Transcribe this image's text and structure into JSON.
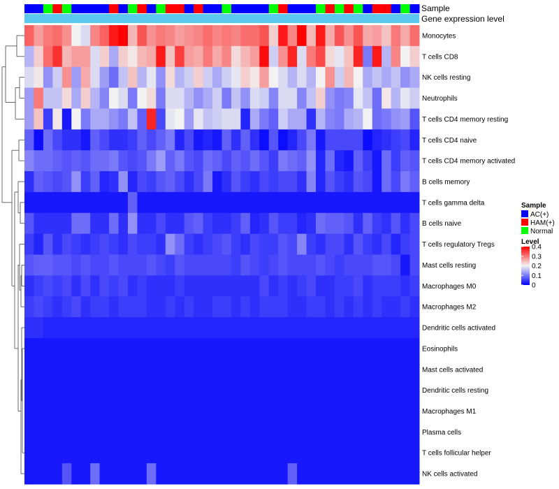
{
  "chart_data": {
    "type": "heatmap",
    "title": "",
    "annotation_rows": [
      {
        "label": "Sample"
      },
      {
        "label": "Gene expression level"
      }
    ],
    "row_labels": [
      "Monocytes",
      "T cells CD8",
      "NK cells resting",
      "Neutrophils",
      "T cells CD4 memory resting",
      "T cells CD4 naive",
      "T cells CD4 memory activated",
      "B cells memory",
      "T cells gamma delta",
      "B cells naive",
      "T cells regulatory  Tregs",
      "Mast cells resting",
      "Macrophages M0",
      "Macrophages M2",
      "Dendritic cells activated",
      "Eosinophils",
      "Mast cells activated",
      "Dendritic cells resting",
      "Macrophages M1",
      "Plasma cells",
      "T cells follicular helper",
      "NK cells activated"
    ],
    "sample_groups": [
      "AC",
      "AC",
      "N",
      "H",
      "N",
      "AC",
      "AC",
      "AC",
      "AC",
      "H",
      "AC",
      "N",
      "H",
      "AC",
      "N",
      "H",
      "H",
      "AC",
      "H",
      "AC",
      "AC",
      "N",
      "AC",
      "AC",
      "AC",
      "AC",
      "N",
      "H",
      "AC",
      "AC",
      "AC",
      "N",
      "H",
      "N",
      "H",
      "N",
      "AC",
      "H",
      "H",
      "AC",
      "N",
      "AC"
    ],
    "legend": {
      "sample": {
        "title": "Sample",
        "entries": [
          {
            "key": "AC",
            "label": "AC(+)",
            "color": "#0000ff"
          },
          {
            "key": "H",
            "label": "HAM(+)",
            "color": "#ff0000"
          },
          {
            "key": "N",
            "label": "Normal",
            "color": "#00ff00"
          }
        ]
      },
      "level": {
        "title": "Level",
        "min": 0,
        "max": 0.4,
        "ticks": [
          {
            "value": 0.4,
            "label": "0.4"
          },
          {
            "value": 0.3,
            "label": "0.3"
          },
          {
            "value": 0.2,
            "label": "0.2"
          },
          {
            "value": 0.1,
            "label": "0.1"
          },
          {
            "value": 0,
            "label": "0"
          }
        ],
        "colors": {
          "low": "#0000ff",
          "mid": "#f2f2f2",
          "high": "#ff0000"
        }
      }
    },
    "expression_bar_color": "#5bc8f0",
    "values": [
      [
        0.32,
        0.27,
        0.3,
        0.31,
        0.28,
        0.2,
        0.18,
        0.29,
        0.32,
        0.38,
        0.4,
        0.25,
        0.33,
        0.28,
        0.3,
        0.29,
        0.27,
        0.28,
        0.29,
        0.31,
        0.29,
        0.3,
        0.29,
        0.31,
        0.31,
        0.33,
        0.23,
        0.38,
        0.29,
        0.4,
        0.25,
        0.38,
        0.26,
        0.33,
        0.28,
        0.33,
        0.26,
        0.27,
        0.24,
        0.3,
        0.26,
        0.31
      ],
      [
        0.15,
        0.23,
        0.31,
        0.36,
        0.25,
        0.27,
        0.27,
        0.18,
        0.23,
        0.14,
        0.23,
        0.21,
        0.25,
        0.26,
        0.38,
        0.24,
        0.35,
        0.27,
        0.26,
        0.3,
        0.26,
        0.29,
        0.22,
        0.25,
        0.27,
        0.39,
        0.17,
        0.28,
        0.37,
        0.18,
        0.3,
        0.34,
        0.22,
        0.19,
        0.24,
        0.37,
        0.1,
        0.38,
        0.15,
        0.29,
        0.2,
        0.23
      ],
      [
        0.18,
        0.21,
        0.12,
        0.17,
        0.28,
        0.13,
        0.26,
        0.18,
        0.13,
        0.09,
        0.16,
        0.24,
        0.15,
        0.19,
        0.12,
        0.22,
        0.15,
        0.17,
        0.23,
        0.17,
        0.14,
        0.17,
        0.19,
        0.23,
        0.21,
        0.27,
        0.2,
        0.18,
        0.15,
        0.18,
        0.15,
        0.2,
        0.28,
        0.17,
        0.25,
        0.2,
        0.14,
        0.16,
        0.14,
        0.16,
        0.12,
        0.14
      ],
      [
        0.13,
        0.3,
        0.16,
        0.16,
        0.22,
        0.14,
        0.23,
        0.15,
        0.11,
        0.2,
        0.18,
        0.1,
        0.2,
        0.22,
        0.1,
        0.18,
        0.18,
        0.15,
        0.12,
        0.14,
        0.17,
        0.1,
        0.16,
        0.12,
        0.18,
        0.17,
        0.11,
        0.18,
        0.18,
        0.11,
        0.16,
        0.23,
        0.12,
        0.1,
        0.11,
        0.19,
        0.16,
        0.09,
        0.21,
        0.15,
        0.19,
        0.17
      ],
      [
        0.13,
        0.24,
        0.05,
        0.21,
        0.02,
        0.2,
        0.1,
        0.14,
        0.14,
        0.12,
        0.1,
        0.16,
        0.08,
        0.37,
        0.06,
        0.19,
        0.2,
        0.13,
        0.19,
        0.16,
        0.17,
        0.18,
        0.18,
        0.03,
        0.14,
        0.1,
        0.08,
        0.17,
        0.14,
        0.14,
        0.04,
        0.15,
        0.11,
        0.1,
        0.14,
        0.15,
        0.2,
        0.09,
        0.1,
        0.12,
        0.13,
        0.07
      ],
      [
        0.08,
        0.01,
        0.09,
        0.06,
        0.04,
        0.04,
        0.02,
        0.08,
        0.06,
        0.04,
        0.04,
        0.05,
        0.08,
        0.06,
        0.08,
        0.1,
        0.03,
        0.06,
        0.02,
        0.03,
        0.02,
        0.08,
        0.04,
        0.08,
        0.04,
        0.01,
        0.07,
        0.01,
        0.03,
        0.06,
        0.1,
        0.02,
        0.06,
        0.06,
        0.06,
        0.06,
        0.01,
        0.03,
        0.04,
        0.05,
        0.06,
        0.03
      ],
      [
        0.11,
        0.09,
        0.09,
        0.08,
        0.07,
        0.08,
        0.07,
        0.09,
        0.09,
        0.1,
        0.07,
        0.06,
        0.07,
        0.1,
        0.13,
        0.08,
        0.1,
        0.07,
        0.06,
        0.09,
        0.08,
        0.06,
        0.08,
        0.07,
        0.09,
        0.07,
        0.05,
        0.1,
        0.09,
        0.08,
        0.12,
        0.03,
        0.09,
        0.03,
        0.02,
        0.08,
        0.05,
        0.02,
        0.09,
        0.05,
        0.08,
        0.07
      ],
      [
        0.04,
        0.08,
        0.07,
        0.06,
        0.07,
        0.12,
        0.05,
        0.08,
        0.03,
        0.04,
        0.12,
        0.03,
        0.06,
        0.05,
        0.07,
        0.08,
        0.06,
        0.04,
        0.06,
        0.1,
        0.02,
        0.04,
        0.07,
        0.05,
        0.04,
        0.06,
        0.05,
        0.06,
        0.06,
        0.04,
        0.11,
        0.03,
        0.07,
        0.05,
        0.04,
        0.07,
        0.06,
        0.02,
        0.09,
        0.06,
        0.1,
        0.08
      ],
      [
        0.02,
        0.02,
        0.02,
        0.02,
        0.02,
        0.02,
        0.02,
        0.02,
        0.02,
        0.02,
        0.02,
        0.08,
        0.02,
        0.02,
        0.02,
        0.02,
        0.02,
        0.02,
        0.02,
        0.02,
        0.02,
        0.02,
        0.02,
        0.02,
        0.02,
        0.02,
        0.02,
        0.02,
        0.02,
        0.02,
        0.02,
        0.02,
        0.02,
        0.02,
        0.02,
        0.02,
        0.02,
        0.02,
        0.02,
        0.02,
        0.02,
        0.02
      ],
      [
        0.07,
        0.04,
        0.04,
        0.04,
        0.04,
        0.09,
        0.09,
        0.04,
        0.04,
        0.09,
        0.04,
        0.12,
        0.04,
        0.04,
        0.06,
        0.04,
        0.04,
        0.07,
        0.08,
        0.05,
        0.04,
        0.04,
        0.05,
        0.08,
        0.03,
        0.04,
        0.07,
        0.05,
        0.05,
        0.03,
        0.04,
        0.09,
        0.08,
        0.08,
        0.07,
        0.04,
        0.08,
        0.05,
        0.04,
        0.07,
        0.04,
        0.06
      ],
      [
        0.05,
        0.03,
        0.07,
        0.04,
        0.06,
        0.05,
        0.04,
        0.05,
        0.06,
        0.05,
        0.04,
        0.06,
        0.05,
        0.05,
        0.04,
        0.12,
        0.09,
        0.05,
        0.04,
        0.05,
        0.06,
        0.07,
        0.05,
        0.04,
        0.06,
        0.05,
        0.05,
        0.07,
        0.06,
        0.11,
        0.05,
        0.04,
        0.06,
        0.06,
        0.04,
        0.07,
        0.05,
        0.04,
        0.06,
        0.03,
        0.05,
        0.06
      ],
      [
        0.07,
        0.08,
        0.08,
        0.07,
        0.07,
        0.06,
        0.07,
        0.06,
        0.06,
        0.07,
        0.06,
        0.06,
        0.06,
        0.07,
        0.06,
        0.05,
        0.07,
        0.06,
        0.06,
        0.06,
        0.06,
        0.06,
        0.05,
        0.07,
        0.06,
        0.05,
        0.06,
        0.07,
        0.06,
        0.06,
        0.06,
        0.07,
        0.06,
        0.05,
        0.06,
        0.06,
        0.06,
        0.07,
        0.07,
        0.06,
        0.02,
        0.06
      ],
      [
        0.04,
        0.05,
        0.06,
        0.05,
        0.06,
        0.04,
        0.06,
        0.04,
        0.06,
        0.05,
        0.06,
        0.04,
        0.05,
        0.04,
        0.04,
        0.04,
        0.05,
        0.04,
        0.04,
        0.04,
        0.04,
        0.04,
        0.04,
        0.04,
        0.04,
        0.06,
        0.04,
        0.05,
        0.04,
        0.05,
        0.06,
        0.04,
        0.04,
        0.05,
        0.05,
        0.06,
        0.04,
        0.05,
        0.05,
        0.05,
        0.04,
        0.05
      ],
      [
        0.05,
        0.06,
        0.05,
        0.04,
        0.05,
        0.06,
        0.04,
        0.05,
        0.05,
        0.04,
        0.05,
        0.05,
        0.05,
        0.04,
        0.04,
        0.05,
        0.04,
        0.05,
        0.04,
        0.04,
        0.05,
        0.05,
        0.04,
        0.05,
        0.04,
        0.05,
        0.05,
        0.05,
        0.04,
        0.04,
        0.05,
        0.05,
        0.04,
        0.05,
        0.04,
        0.05,
        0.04,
        0.05,
        0.04,
        0.04,
        0.05,
        0.04
      ],
      [
        0.04,
        0.04,
        0.03,
        0.03,
        0.03,
        0.03,
        0.03,
        0.03,
        0.03,
        0.03,
        0.03,
        0.03,
        0.03,
        0.03,
        0.03,
        0.03,
        0.03,
        0.03,
        0.03,
        0.03,
        0.03,
        0.03,
        0.03,
        0.03,
        0.03,
        0.03,
        0.03,
        0.03,
        0.03,
        0.03,
        0.03,
        0.03,
        0.03,
        0.03,
        0.03,
        0.03,
        0.03,
        0.03,
        0.03,
        0.03,
        0.03,
        0.03
      ],
      [
        0.02,
        0.02,
        0.02,
        0.02,
        0.02,
        0.02,
        0.02,
        0.02,
        0.02,
        0.02,
        0.02,
        0.02,
        0.02,
        0.02,
        0.02,
        0.02,
        0.02,
        0.02,
        0.02,
        0.02,
        0.02,
        0.02,
        0.02,
        0.02,
        0.02,
        0.02,
        0.02,
        0.02,
        0.02,
        0.02,
        0.02,
        0.02,
        0.02,
        0.02,
        0.02,
        0.02,
        0.02,
        0.02,
        0.02,
        0.02,
        0.02,
        0.02
      ],
      [
        0.02,
        0.02,
        0.02,
        0.02,
        0.02,
        0.02,
        0.02,
        0.02,
        0.02,
        0.02,
        0.02,
        0.02,
        0.02,
        0.02,
        0.02,
        0.02,
        0.02,
        0.02,
        0.02,
        0.02,
        0.02,
        0.02,
        0.02,
        0.02,
        0.02,
        0.02,
        0.02,
        0.02,
        0.02,
        0.02,
        0.02,
        0.02,
        0.02,
        0.02,
        0.02,
        0.02,
        0.02,
        0.02,
        0.02,
        0.02,
        0.02,
        0.02
      ],
      [
        0.02,
        0.02,
        0.02,
        0.02,
        0.02,
        0.02,
        0.02,
        0.02,
        0.02,
        0.02,
        0.02,
        0.02,
        0.02,
        0.02,
        0.02,
        0.02,
        0.02,
        0.02,
        0.02,
        0.02,
        0.02,
        0.02,
        0.02,
        0.02,
        0.02,
        0.02,
        0.02,
        0.02,
        0.02,
        0.02,
        0.02,
        0.02,
        0.02,
        0.02,
        0.02,
        0.02,
        0.02,
        0.02,
        0.02,
        0.02,
        0.02,
        0.02
      ],
      [
        0.02,
        0.02,
        0.02,
        0.02,
        0.02,
        0.02,
        0.02,
        0.02,
        0.02,
        0.02,
        0.02,
        0.02,
        0.02,
        0.02,
        0.02,
        0.02,
        0.02,
        0.02,
        0.02,
        0.02,
        0.02,
        0.02,
        0.02,
        0.02,
        0.02,
        0.02,
        0.02,
        0.02,
        0.02,
        0.02,
        0.02,
        0.02,
        0.02,
        0.02,
        0.02,
        0.02,
        0.02,
        0.02,
        0.02,
        0.02,
        0.02,
        0.02
      ],
      [
        0.02,
        0.02,
        0.02,
        0.02,
        0.02,
        0.02,
        0.02,
        0.02,
        0.02,
        0.02,
        0.02,
        0.02,
        0.02,
        0.02,
        0.02,
        0.02,
        0.02,
        0.02,
        0.02,
        0.02,
        0.02,
        0.02,
        0.02,
        0.02,
        0.02,
        0.02,
        0.02,
        0.02,
        0.02,
        0.02,
        0.02,
        0.02,
        0.02,
        0.02,
        0.02,
        0.02,
        0.02,
        0.02,
        0.02,
        0.02,
        0.02,
        0.02
      ],
      [
        0.02,
        0.02,
        0.02,
        0.02,
        0.02,
        0.02,
        0.02,
        0.02,
        0.02,
        0.02,
        0.02,
        0.02,
        0.02,
        0.02,
        0.02,
        0.02,
        0.02,
        0.02,
        0.02,
        0.02,
        0.02,
        0.02,
        0.02,
        0.02,
        0.02,
        0.02,
        0.02,
        0.02,
        0.02,
        0.02,
        0.02,
        0.02,
        0.02,
        0.02,
        0.02,
        0.02,
        0.02,
        0.02,
        0.02,
        0.02,
        0.02,
        0.02
      ],
      [
        0.02,
        0.02,
        0.02,
        0.02,
        0.07,
        0.02,
        0.02,
        0.09,
        0.02,
        0.02,
        0.02,
        0.02,
        0.02,
        0.09,
        0.02,
        0.02,
        0.02,
        0.02,
        0.02,
        0.02,
        0.02,
        0.02,
        0.02,
        0.02,
        0.02,
        0.02,
        0.02,
        0.02,
        0.08,
        0.02,
        0.02,
        0.02,
        0.02,
        0.02,
        0.02,
        0.02,
        0.02,
        0.02,
        0.02,
        0.02,
        0.02,
        0.02
      ]
    ]
  }
}
